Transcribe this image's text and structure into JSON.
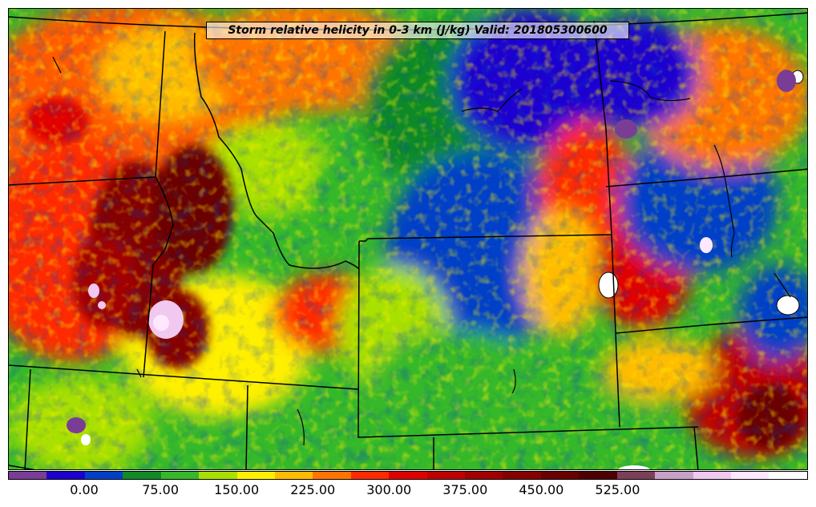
{
  "title": "Storm relative helicity in 0-3 km (J/kg) Valid: 201805300600",
  "colorbar": {
    "colors": [
      "#7a3d96",
      "#1c00d0",
      "#0041c8",
      "#118a28",
      "#35b82a",
      "#a8e000",
      "#fff000",
      "#ffbc00",
      "#ff7400",
      "#ff2a00",
      "#e00000",
      "#bf0000",
      "#a10000",
      "#850000",
      "#6a0000",
      "#500000",
      "#7c3f58",
      "#c8a0c8",
      "#f0c8f0",
      "#ffe8ff",
      "#ffffff"
    ],
    "tick_labels": [
      "0.00",
      "75.00",
      "150.00",
      "225.00",
      "300.00",
      "375.00",
      "450.00",
      "525.00"
    ]
  }
}
